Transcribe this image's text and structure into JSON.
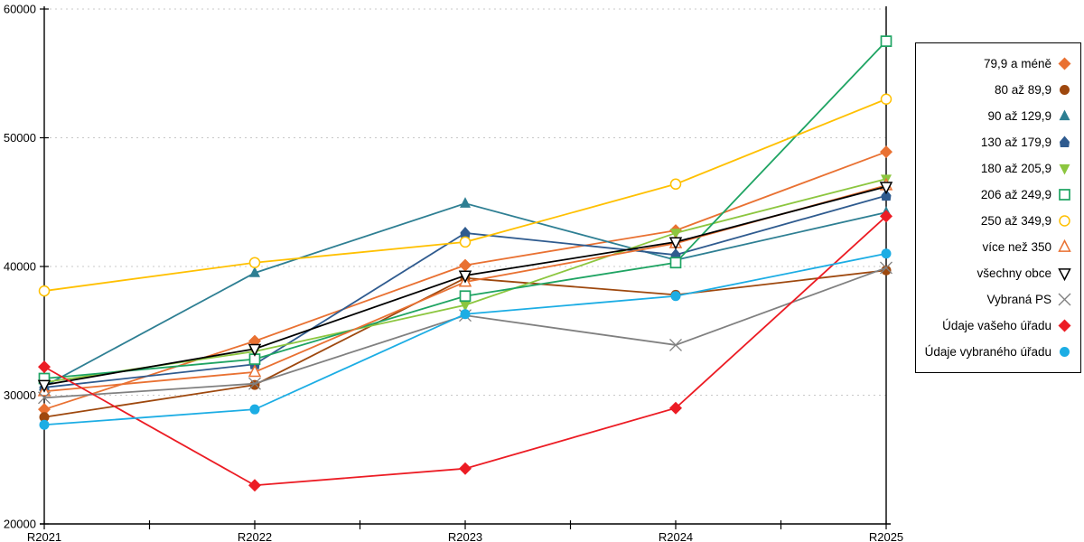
{
  "chart_data": {
    "type": "line",
    "title": "",
    "xlabel": "",
    "ylabel": "",
    "categories": [
      "R2021",
      "R2022",
      "R2023",
      "R2024",
      "R2025"
    ],
    "ylim": [
      20000,
      60000
    ],
    "yticks": [
      20000,
      30000,
      40000,
      50000,
      60000
    ],
    "grid": "horizontal-dotted",
    "gridline_color": "#c8c8c8",
    "axis_color": "#000000",
    "legend_position": "right-box",
    "series": [
      {
        "name": "79,9 a méně",
        "slug": "79-9-a-mene",
        "color": "#E97132",
        "marker": "diamond",
        "values": [
          28900,
          34200,
          40100,
          42800,
          48900
        ]
      },
      {
        "name": "80 až 89,9",
        "slug": "80-az-89-9",
        "color": "#9E480E",
        "marker": "circle",
        "values": [
          28300,
          30800,
          39100,
          37800,
          39700
        ]
      },
      {
        "name": "90 až 129,9",
        "slug": "90-az-129-9",
        "color": "#2E7F93",
        "marker": "triangle-up",
        "values": [
          30700,
          39500,
          44900,
          40500,
          44200
        ]
      },
      {
        "name": "130 až 179,9",
        "slug": "130-az-179-9",
        "color": "#2F5B8F",
        "marker": "pentagon",
        "values": [
          30600,
          32400,
          42600,
          40900,
          45500
        ]
      },
      {
        "name": "180 až 205,9",
        "slug": "180-az-205-9",
        "color": "#8CC63F",
        "marker": "triangle-down",
        "values": [
          31000,
          33400,
          37000,
          42600,
          46800
        ]
      },
      {
        "name": "206 až 249,9",
        "slug": "206-az-249-9",
        "color": "#1FA463",
        "marker": "square-open",
        "values": [
          31300,
          32800,
          37700,
          40300,
          57500
        ]
      },
      {
        "name": "250 až 349,9",
        "slug": "250-az-349-9",
        "color": "#FFC000",
        "marker": "circle-open",
        "values": [
          38100,
          40300,
          41900,
          46400,
          53000
        ]
      },
      {
        "name": "více než 350",
        "slug": "vice-nez-350",
        "color": "#E97132",
        "marker": "triangle-up-open",
        "values": [
          30300,
          31800,
          38800,
          41800,
          46300
        ]
      },
      {
        "name": "všechny obce",
        "slug": "vsechny-obce",
        "color": "#000000",
        "marker": "triangle-down-open",
        "values": [
          30800,
          33600,
          39300,
          41900,
          46200
        ]
      },
      {
        "name": "Vybraná PS",
        "slug": "vybrana-ps",
        "color": "#808080",
        "marker": "x",
        "values": [
          29800,
          30900,
          36200,
          33900,
          39900
        ]
      },
      {
        "name": "Údaje vašeho úřadu",
        "slug": "udaje-vaseho-uradu",
        "color": "#EC1C24",
        "marker": "diamond",
        "values": [
          32200,
          23000,
          24300,
          29000,
          43900
        ]
      },
      {
        "name": "Údaje vybraného úřadu",
        "slug": "udaje-vybraneho-uradu",
        "color": "#1CADE4",
        "marker": "circle",
        "values": [
          27700,
          28900,
          36300,
          37700,
          41000
        ]
      }
    ]
  }
}
